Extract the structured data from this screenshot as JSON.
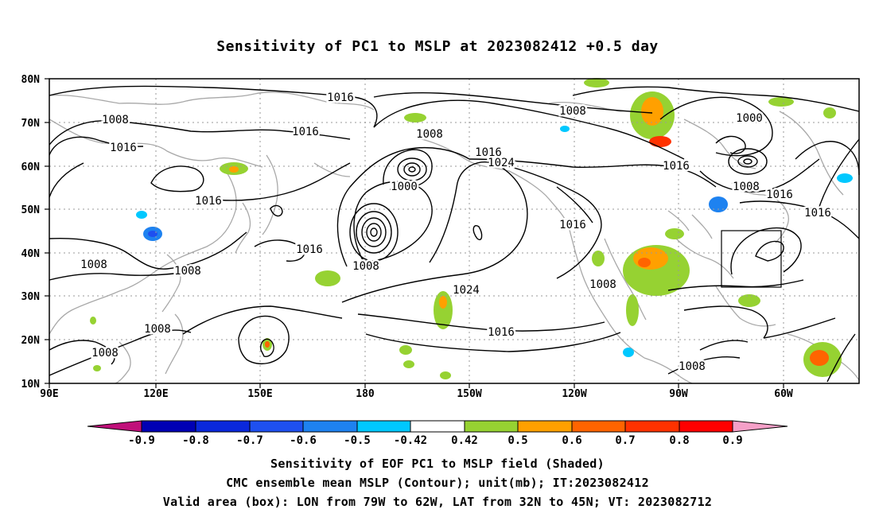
{
  "title": "Sensitivity of PC1 to MSLP at 2023082412 +0.5 day",
  "map": {
    "lat_labels": [
      "80N",
      "70N",
      "60N",
      "50N",
      "40N",
      "30N",
      "20N",
      "10N"
    ],
    "lon_labels": [
      "90E",
      "120E",
      "150E",
      "180",
      "150W",
      "120W",
      "90W",
      "60W"
    ],
    "contour_labels": [
      "1016",
      "1008",
      "1016",
      "1016",
      "1008",
      "1016",
      "1024",
      "1016",
      "1008",
      "1000",
      "1000",
      "1016",
      "1008",
      "1016",
      "1016",
      "1016",
      "1016",
      "1008",
      "1008",
      "1008",
      "1008",
      "1024",
      "1016",
      "1008",
      "1008",
      "1008",
      "1016"
    ],
    "valid_box_color": "#000000"
  },
  "colorbar": {
    "labels": [
      "-0.9",
      "-0.8",
      "-0.7",
      "-0.6",
      "-0.5",
      "-0.42",
      "0.42",
      "0.5",
      "0.6",
      "0.7",
      "0.8",
      "0.9"
    ],
    "colors": [
      "#0000b4",
      "#0a28dc",
      "#1e50f0",
      "#1e82f0",
      "#00c8ff",
      "#ffffff",
      "#96d232",
      "#ffa000",
      "#ff6400",
      "#ff3200",
      "#ff0000"
    ],
    "low_end_color": "#c0107a",
    "high_end_color": "#f5a0c8"
  },
  "footer": {
    "line1": "Sensitivity of EOF PC1 to MSLP field (Shaded)",
    "line2": "CMC ensemble mean MSLP (Contour); unit(mb); IT:2023082412",
    "line3": "Valid area (box): LON from 79W to 62W, LAT from 32N to 45N; VT: 2023082712"
  }
}
